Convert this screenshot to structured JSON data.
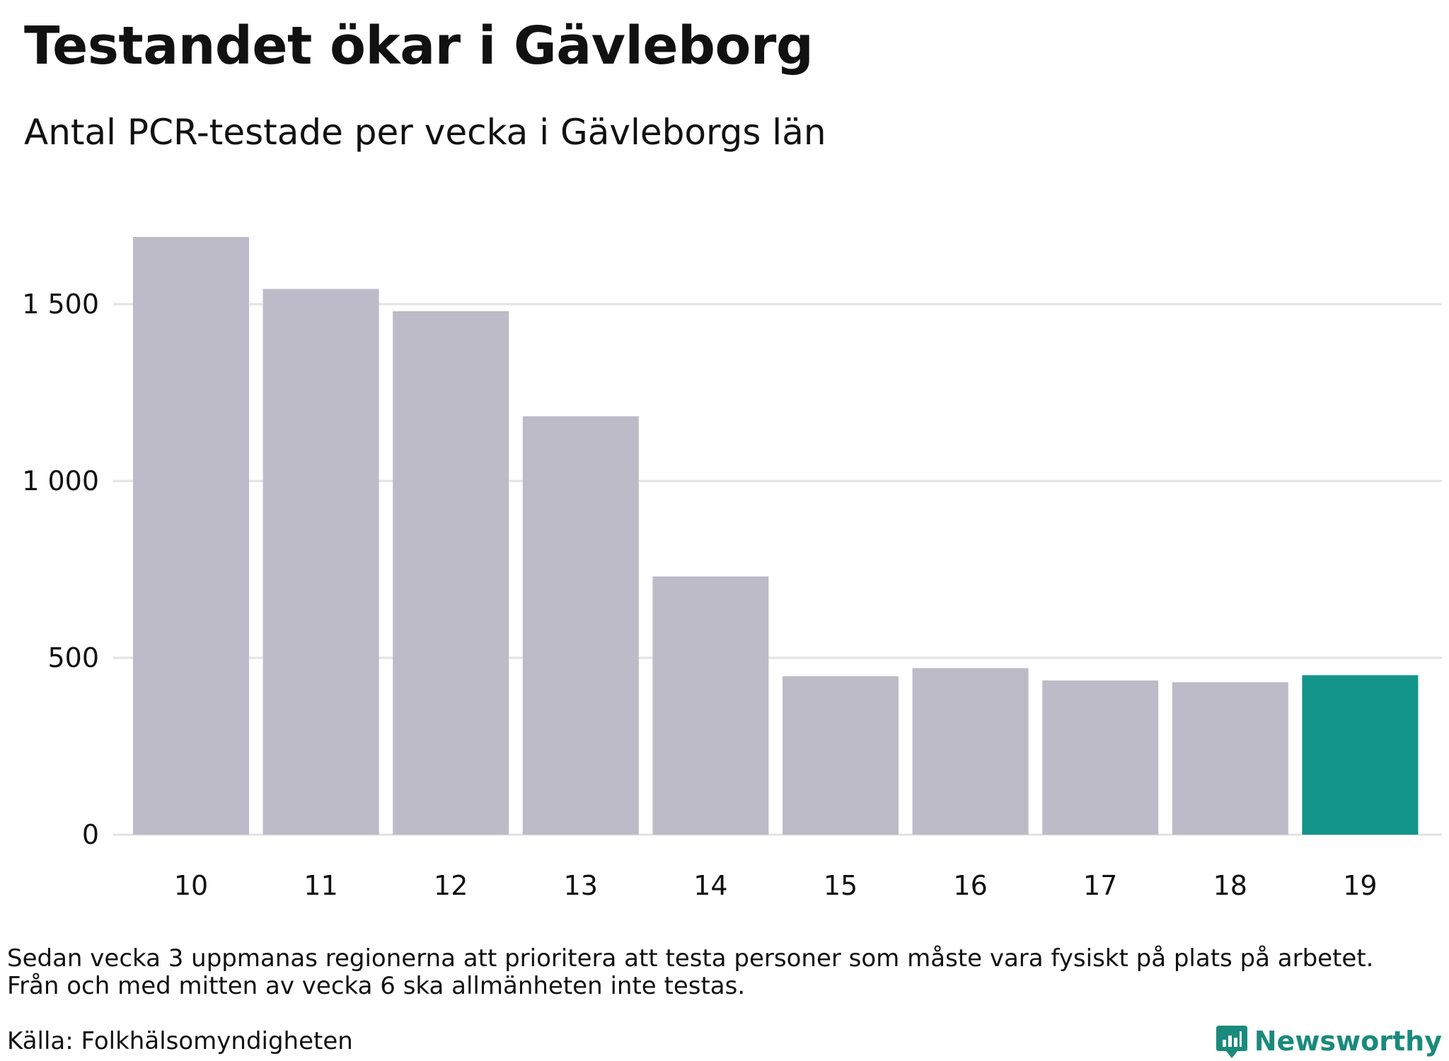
{
  "header": {
    "title": "Testandet ökar i Gävleborg",
    "subtitle": "Antal PCR-testade per vecka i Gävleborgs län"
  },
  "chart_data": {
    "type": "bar",
    "categories": [
      "10",
      "11",
      "12",
      "13",
      "14",
      "15",
      "16",
      "17",
      "18",
      "19"
    ],
    "values": [
      1690,
      1543,
      1480,
      1183,
      730,
      448,
      471,
      436,
      431,
      451
    ],
    "ylim": [
      0,
      1750
    ],
    "yticks": [
      0,
      500,
      1000,
      1500
    ],
    "ytick_labels": [
      "0",
      "500",
      "1 000",
      "1 500"
    ],
    "grid": true,
    "colors": {
      "default_bar": "#bdbbc8",
      "highlight_bar": "#13958a",
      "grid": "#e3e3e3"
    },
    "highlight_index": 9
  },
  "footer": {
    "note_line1": "Sedan vecka 3 uppmanas regionerna att prioritera att testa personer som måste vara fysiskt på plats på arbetet.",
    "note_line2": "Från och med mitten av vecka 6 ska allmänheten inte testas.",
    "source": "Källa: Folkhälsomyndigheten",
    "brand": "Newsworthy",
    "brand_icon": "bar-chart-icon"
  }
}
